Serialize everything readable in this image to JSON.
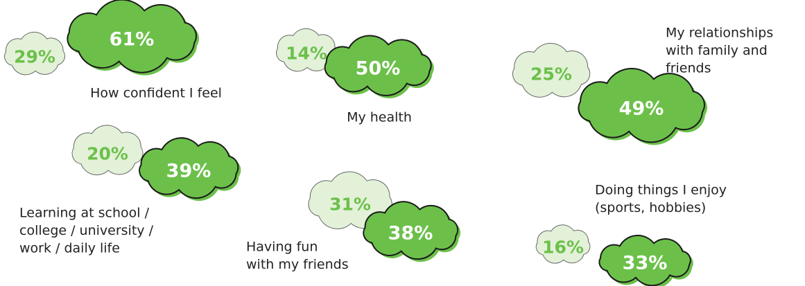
{
  "items": [
    {
      "label": [
        "How confident I feel"
      ],
      "primary": "61%",
      "secondary": "29%"
    },
    {
      "label": [
        "My health"
      ],
      "primary": "50%",
      "secondary": "14%"
    },
    {
      "label": [
        "My relationships",
        "with family and",
        "friends"
      ],
      "primary": "49%",
      "secondary": "25%"
    },
    {
      "label": [
        "Learning at school /",
        "college / university /",
        "work / daily life"
      ],
      "primary": "39%",
      "secondary": "20%"
    },
    {
      "label": [
        "Having fun",
        "with my friends"
      ],
      "primary": "38%",
      "secondary": "31%"
    },
    {
      "label": [
        "Doing things I enjoy",
        "(sports, hobbies)"
      ],
      "primary": "33%",
      "secondary": "16%"
    }
  ]
}
